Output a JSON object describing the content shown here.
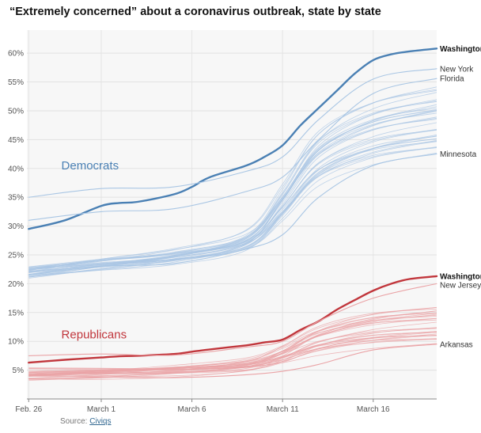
{
  "chart_data": {
    "type": "line",
    "title": "“Extremely concerned” about a coronavirus outbreak, state by state",
    "x_ticks": [
      {
        "label": "Feb. 26",
        "x": 0
      },
      {
        "label": "March 1",
        "x": 4
      },
      {
        "label": "March 6",
        "x": 9
      },
      {
        "label": "March 11",
        "x": 14
      },
      {
        "label": "March 16",
        "x": 19
      }
    ],
    "y_ticks": [
      "5%",
      "10%",
      "15%",
      "20%",
      "25%",
      "30%",
      "35%",
      "40%",
      "45%",
      "50%",
      "55%",
      "60%"
    ],
    "y_tick_values": [
      5,
      10,
      15,
      20,
      25,
      30,
      35,
      40,
      45,
      50,
      55,
      60
    ],
    "xlim": [
      -0.1,
      22.5
    ],
    "ylim": [
      0,
      64
    ],
    "grid": true,
    "groups": [
      {
        "label": "Democrats",
        "color": "#4a80b4",
        "light_color": "#a9c6e4"
      },
      {
        "label": "Republicans",
        "color": "#c1363c",
        "light_color": "#eaa3a6"
      }
    ],
    "series": [
      {
        "name": "Washington",
        "group": 0,
        "highlight": true,
        "x": [
          0,
          2,
          4,
          5,
          6,
          8,
          9,
          10,
          12,
          13,
          14,
          15,
          16,
          17,
          18,
          19,
          20,
          21,
          22.5
        ],
        "values": [
          29.5,
          31,
          33.5,
          34,
          34.2,
          35.5,
          36.8,
          38.5,
          40.5,
          42,
          44,
          47.5,
          50.5,
          53.5,
          56.5,
          58.8,
          59.8,
          60.3,
          60.8
        ]
      },
      {
        "name": "New York",
        "group": 0,
        "highlight": false,
        "x": [
          0,
          4,
          8,
          12,
          14,
          16,
          19,
          22.5
        ],
        "values": [
          35,
          36.5,
          36.8,
          39.5,
          42,
          48.5,
          55.5,
          57.3
        ]
      },
      {
        "name": "Florida",
        "group": 0,
        "highlight": false,
        "x": [
          0,
          4,
          8,
          12,
          14,
          16,
          19,
          22.5
        ],
        "values": [
          31,
          32.5,
          33,
          36,
          38.5,
          45,
          53,
          55.6
        ]
      },
      {
        "name": "Minnesota",
        "group": 0,
        "highlight": false,
        "x": [
          0,
          4,
          8,
          12,
          14,
          16,
          19,
          22.5
        ],
        "values": [
          21.5,
          23,
          23.5,
          26,
          28.5,
          35,
          40.5,
          42.5
        ]
      },
      {
        "name": "Washington",
        "group": 1,
        "highlight": true,
        "x": [
          0,
          2,
          4,
          5,
          6,
          8,
          9,
          10,
          12,
          13,
          14,
          15,
          16,
          17,
          18,
          19,
          20,
          21,
          22.5
        ],
        "values": [
          6.3,
          6.8,
          7.2,
          7.4,
          7.5,
          7.8,
          8.2,
          8.6,
          9.3,
          9.8,
          10.3,
          12,
          13.5,
          15.5,
          17.2,
          18.8,
          20,
          20.8,
          21.3
        ]
      },
      {
        "name": "New Jersey",
        "group": 1,
        "highlight": false,
        "x": [
          0,
          4,
          8,
          12,
          14,
          16,
          19,
          22.5
        ],
        "values": [
          7.5,
          7.8,
          7.6,
          9,
          10,
          13.5,
          17.5,
          20
        ]
      },
      {
        "name": "Arkansas",
        "group": 1,
        "highlight": false,
        "x": [
          0,
          4,
          8,
          12,
          14,
          16,
          19,
          22.5
        ],
        "values": [
          3.5,
          3.8,
          3.7,
          4.2,
          4.8,
          6,
          8.5,
          9.5
        ]
      }
    ]
  },
  "source": {
    "prefix": "Source: ",
    "link": "Civiqs"
  }
}
